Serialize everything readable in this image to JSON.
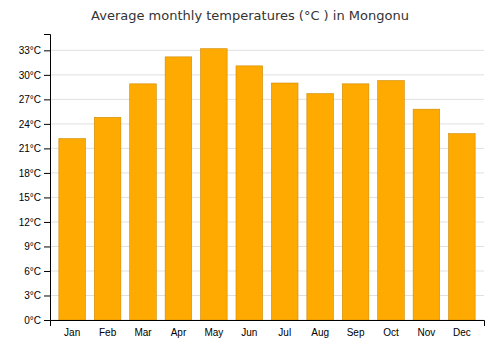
{
  "chart_data": {
    "type": "bar",
    "title": "Average monthly temperatures (°C ) in Mongonu",
    "categories": [
      "Jan",
      "Feb",
      "Mar",
      "Apr",
      "May",
      "Jun",
      "Jul",
      "Aug",
      "Sep",
      "Oct",
      "Nov",
      "Dec"
    ],
    "values": [
      22.2,
      24.8,
      28.9,
      32.2,
      33.2,
      31.1,
      29.0,
      27.7,
      28.9,
      29.3,
      25.8,
      22.8
    ],
    "color": "#FFAA00",
    "ylim": [
      0,
      35
    ],
    "yticks": [
      {
        "value": 0,
        "label": "0°C"
      },
      {
        "value": 3,
        "label": "3°C"
      },
      {
        "value": 6,
        "label": "6°C"
      },
      {
        "value": 9,
        "label": "9°C"
      },
      {
        "value": 12,
        "label": "12°C"
      },
      {
        "value": 15,
        "label": "15°C"
      },
      {
        "value": 18,
        "label": "18°C"
      },
      {
        "value": 21,
        "label": "21°C"
      },
      {
        "value": 24,
        "label": "24°C"
      },
      {
        "value": 27,
        "label": "27°C"
      },
      {
        "value": 30,
        "label": "30°C"
      },
      {
        "value": 33,
        "label": "33°C"
      }
    ],
    "grid": true
  }
}
